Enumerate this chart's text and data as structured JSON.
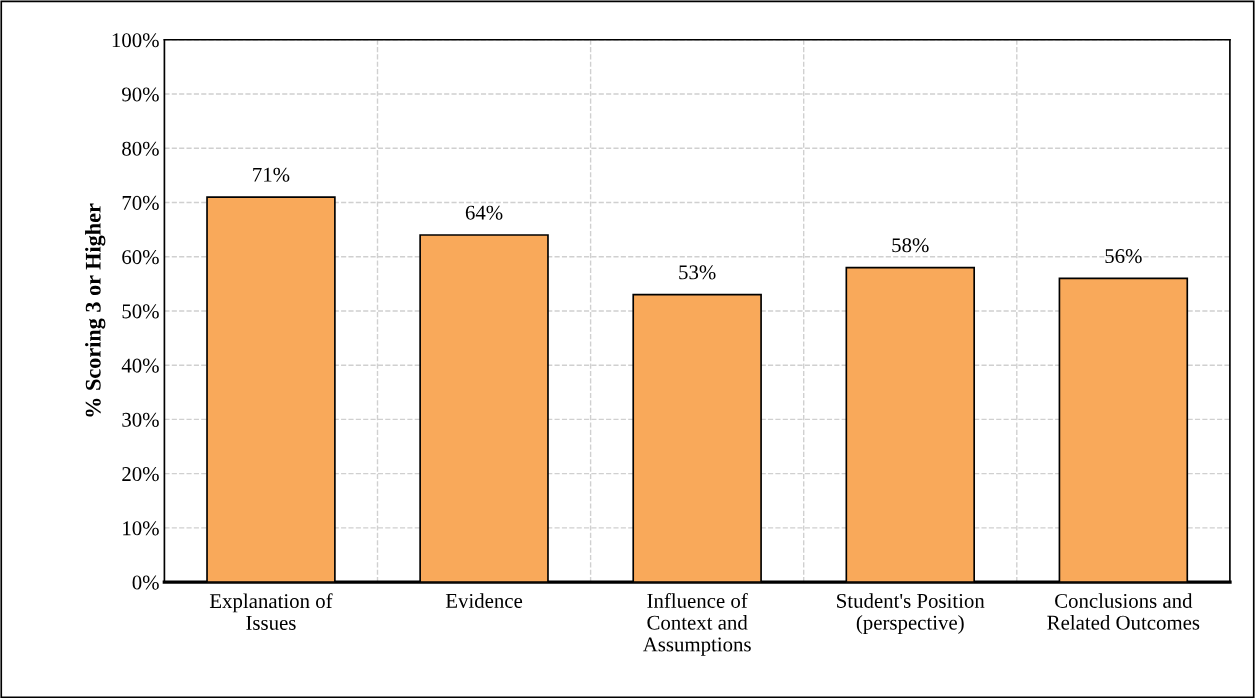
{
  "chart_data": {
    "type": "bar",
    "ylabel": "% Scoring 3 or Higher",
    "categories": [
      "Explanation of Issues",
      "Evidence",
      "Influence of Context and Assumptions",
      "Student's Position (perspective)",
      "Conclusions and Related Outcomes"
    ],
    "values": [
      71,
      64,
      53,
      58,
      56
    ],
    "value_labels": [
      "71%",
      "64%",
      "53%",
      "58%",
      "56%"
    ],
    "color": "#f9a95a",
    "ylim": [
      0,
      100
    ],
    "yticks": [
      {
        "value": 0,
        "label": "0%"
      },
      {
        "value": 10,
        "label": "10%"
      },
      {
        "value": 20,
        "label": "20%"
      },
      {
        "value": 30,
        "label": "30%"
      },
      {
        "value": 40,
        "label": "40%"
      },
      {
        "value": 50,
        "label": "50%"
      },
      {
        "value": 60,
        "label": "60%"
      },
      {
        "value": 70,
        "label": "70%"
      },
      {
        "value": 80,
        "label": "80%"
      },
      {
        "value": 90,
        "label": "90%"
      },
      {
        "value": 100,
        "label": "100%"
      }
    ],
    "grid": true
  }
}
